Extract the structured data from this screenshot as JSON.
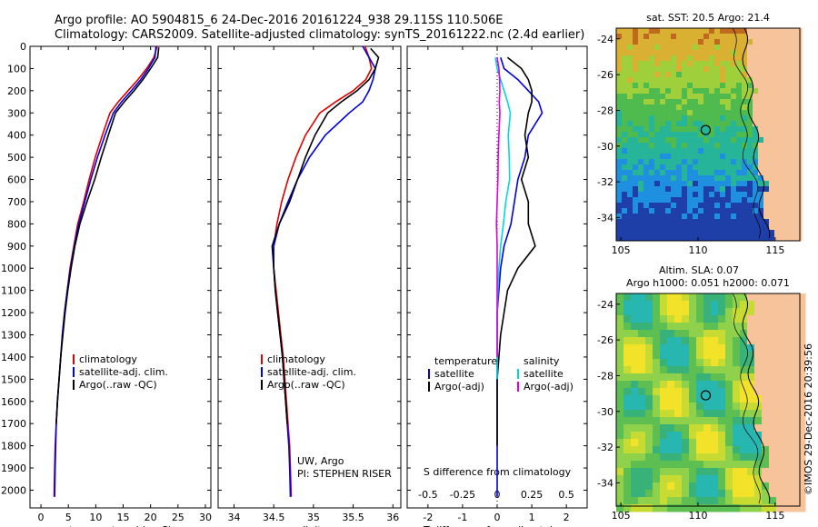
{
  "header": {
    "line1": "Argo profile: AO 5904815_6 24-Dec-2016 20161224_938 29.115S 110.506E",
    "line2": "Climatology: CARS2009. Satellite-adjusted climatology: synTS_20161222.nc (2.4d earlier)"
  },
  "side_text": "©IMOS 29-Dec-2016 20:39:56",
  "chart_data": [
    {
      "id": "temperature",
      "type": "line",
      "xlabel": "temperature (deg C)",
      "ylabel": "",
      "xlim": [
        -2,
        31
      ],
      "ylim": [
        2080,
        0
      ],
      "xticks": [
        0,
        5,
        10,
        15,
        20,
        25,
        30
      ],
      "yticks": [
        0,
        100,
        200,
        300,
        400,
        500,
        600,
        700,
        800,
        900,
        1000,
        1100,
        1200,
        1300,
        1400,
        1500,
        1600,
        1700,
        1800,
        1900,
        2000
      ],
      "legend": [
        "climatology",
        "satellite-adj. clim.",
        "Argo(..raw -QC)"
      ],
      "series": [
        {
          "name": "climatology",
          "color": "#e00000",
          "x": [
            21.2,
            20.6,
            19.3,
            17.7,
            15.9,
            14.1,
            12.6,
            11.2,
            9.9,
            8.8,
            7.8,
            6.7,
            6.0,
            5.3,
            4.8,
            4.3,
            3.9,
            3.6,
            3.3,
            3.0,
            2.8,
            2.6,
            2.5,
            2.4
          ],
          "y": [
            0,
            50,
            100,
            150,
            200,
            250,
            300,
            400,
            500,
            600,
            700,
            800,
            900,
            1000,
            1100,
            1200,
            1300,
            1400,
            1500,
            1600,
            1700,
            1800,
            1900,
            2030
          ]
        },
        {
          "name": "satellite-adj. clim.",
          "color": "#0000e0",
          "x": [
            21.0,
            20.8,
            19.6,
            18.2,
            16.5,
            14.7,
            13.2,
            11.7,
            10.3,
            9.1,
            8.0,
            6.9,
            6.1,
            5.4,
            4.8,
            4.3,
            3.9,
            3.6,
            3.3,
            3.0,
            2.8,
            2.7,
            2.6,
            2.5
          ],
          "y": [
            0,
            50,
            100,
            150,
            200,
            250,
            300,
            400,
            500,
            600,
            700,
            800,
            900,
            1000,
            1100,
            1200,
            1300,
            1400,
            1500,
            1600,
            1700,
            1800,
            1900,
            2030
          ]
        },
        {
          "name": "Argo(..raw -QC)",
          "color": "#000000",
          "x": [
            21.5,
            21.3,
            20.0,
            18.6,
            17.0,
            15.2,
            13.6,
            12.3,
            11.0,
            9.8,
            8.4,
            7.1,
            6.2,
            5.5,
            4.9,
            4.4,
            4.0,
            3.6,
            3.3,
            3.0,
            2.8
          ],
          "y": [
            5,
            50,
            100,
            150,
            200,
            250,
            300,
            400,
            500,
            600,
            700,
            800,
            900,
            1000,
            1100,
            1200,
            1300,
            1400,
            1500,
            1600,
            1700
          ]
        }
      ]
    },
    {
      "id": "salinity",
      "type": "line",
      "xlabel": "salinity",
      "ylabel": "",
      "xlim": [
        33.8,
        36.1
      ],
      "ylim": [
        2080,
        0
      ],
      "xticks": [
        34,
        34.5,
        35,
        35.5,
        36
      ],
      "legend": [
        "climatology",
        "satellite-adj. clim.",
        "Argo(..raw -QC)"
      ],
      "annotation": [
        "UW, Argo",
        "PI: STEPHEN RISER"
      ],
      "series": [
        {
          "name": "climatology",
          "color": "#e00000",
          "x": [
            35.65,
            35.7,
            35.73,
            35.66,
            35.5,
            35.28,
            35.08,
            34.9,
            34.78,
            34.68,
            34.6,
            34.54,
            34.5,
            34.5,
            34.53,
            34.56,
            34.59,
            34.62,
            34.64,
            34.66,
            34.68,
            34.7,
            34.71,
            34.72
          ],
          "y": [
            0,
            50,
            100,
            150,
            200,
            250,
            300,
            400,
            500,
            600,
            700,
            800,
            900,
            1000,
            1100,
            1200,
            1300,
            1400,
            1500,
            1600,
            1700,
            1800,
            1900,
            2030
          ]
        },
        {
          "name": "satellite-adj. clim.",
          "color": "#0000e0",
          "x": [
            35.62,
            35.7,
            35.78,
            35.75,
            35.7,
            35.62,
            35.45,
            35.15,
            34.95,
            34.8,
            34.68,
            34.57,
            34.5,
            34.5,
            34.52,
            34.55,
            34.58,
            34.61,
            34.63,
            34.65,
            34.67,
            34.69,
            34.7,
            34.71
          ],
          "y": [
            0,
            50,
            100,
            150,
            200,
            250,
            300,
            400,
            500,
            600,
            700,
            800,
            900,
            1000,
            1100,
            1200,
            1300,
            1400,
            1500,
            1600,
            1700,
            1800,
            1900,
            2030
          ]
        },
        {
          "name": "Argo(..raw -QC)",
          "color": "#000000",
          "x": [
            35.72,
            35.82,
            35.78,
            35.7,
            35.55,
            35.35,
            35.18,
            35.02,
            34.9,
            34.8,
            34.7,
            34.57,
            34.48,
            34.5,
            34.52,
            34.55,
            34.58,
            34.61,
            34.63,
            34.65,
            34.67
          ],
          "y": [
            10,
            50,
            100,
            150,
            200,
            250,
            300,
            400,
            500,
            600,
            700,
            800,
            900,
            1000,
            1100,
            1200,
            1300,
            1400,
            1500,
            1600,
            1700
          ]
        }
      ]
    },
    {
      "id": "differences",
      "type": "line",
      "xlabel": "T difference from climatology",
      "top_label": "S difference from climatology",
      "xlim": [
        -2.6,
        2.6
      ],
      "ylim": [
        2080,
        0
      ],
      "xticks": [
        -2,
        -1,
        0,
        1,
        2
      ],
      "s_ticks": [
        "-0.5",
        "-0.25",
        "0",
        "0.25",
        "0.5"
      ],
      "legend_headers": [
        "temperature",
        "salinity"
      ],
      "legend": [
        "satellite",
        "Argo(-adj)",
        "satellite",
        "Argo(-adj)"
      ],
      "series": [
        {
          "name": "T satellite",
          "color": "#0000e0",
          "x": [
            0.1,
            0.2,
            0.6,
            0.9,
            1.2,
            1.3,
            0.9,
            0.8,
            0.6,
            0.5,
            0.4,
            0.2,
            0.1,
            0.05,
            0.0,
            0.0,
            0.0,
            0.0,
            0.0,
            0.0,
            0.0,
            0.0,
            0.0
          ],
          "y": [
            50,
            100,
            150,
            200,
            250,
            300,
            400,
            500,
            600,
            700,
            800,
            900,
            1000,
            1100,
            1200,
            1300,
            1400,
            1500,
            1600,
            1700,
            1800,
            1900,
            2030
          ]
        },
        {
          "name": "T Argo(-adj)",
          "color": "#000000",
          "x": [
            0.3,
            0.7,
            0.9,
            1.0,
            1.0,
            0.9,
            0.8,
            0.9,
            0.7,
            0.9,
            0.9,
            1.1,
            0.6,
            0.3,
            0.2,
            0.1,
            0.05,
            0.0,
            0.0,
            0.0,
            0.0
          ],
          "y": [
            50,
            100,
            150,
            200,
            250,
            300,
            400,
            500,
            600,
            700,
            800,
            900,
            1000,
            1100,
            1200,
            1300,
            1400,
            1500,
            1600,
            1700,
            1800
          ]
        },
        {
          "name": "S satellite",
          "color": "#00d8e0",
          "x": [
            -0.05,
            0.0,
            0.1,
            0.2,
            0.3,
            0.38,
            0.32,
            0.35,
            0.36,
            0.25,
            0.18,
            0.1,
            0.05,
            0.02,
            0.0,
            0.0,
            0.0,
            0.0
          ],
          "y": [
            50,
            100,
            150,
            200,
            250,
            300,
            400,
            500,
            600,
            700,
            800,
            900,
            1000,
            1100,
            1200,
            1300,
            1400,
            1500
          ]
        },
        {
          "name": "S Argo(-adj)",
          "color": "#e000e0",
          "x": [
            0.0,
            0.05,
            0.07,
            0.08,
            0.06,
            0.08,
            0.05,
            0.03,
            0.02,
            0.0,
            -0.02,
            0.0,
            0.0,
            0.0,
            0.0,
            0.0,
            0.0
          ],
          "y": [
            50,
            100,
            150,
            200,
            250,
            300,
            400,
            500,
            600,
            700,
            800,
            900,
            1000,
            1100,
            1200,
            1300,
            1400
          ]
        }
      ]
    }
  ],
  "maps": [
    {
      "id": "sst",
      "title": "sat. SST: 20.5  Argo: 21.4",
      "xticks": [
        "105",
        "110",
        "115"
      ],
      "yticks": [
        "-24",
        "-26",
        "-28",
        "-30",
        "-32",
        "-34"
      ],
      "marker_lon": 110.5,
      "marker_lat": -29.1
    },
    {
      "id": "sla",
      "title": "Altim. SLA: 0.07",
      "subtitle": "Argo h1000: 0.051 h2000: 0.071",
      "xticks": [
        "105",
        "110",
        "115"
      ],
      "yticks": [
        "-24",
        "-26",
        "-28",
        "-30",
        "-32",
        "-34"
      ],
      "marker_lon": 110.5,
      "marker_lat": -29.1
    }
  ],
  "colors": {
    "land": "#f7c39a",
    "frame": "#000000"
  }
}
